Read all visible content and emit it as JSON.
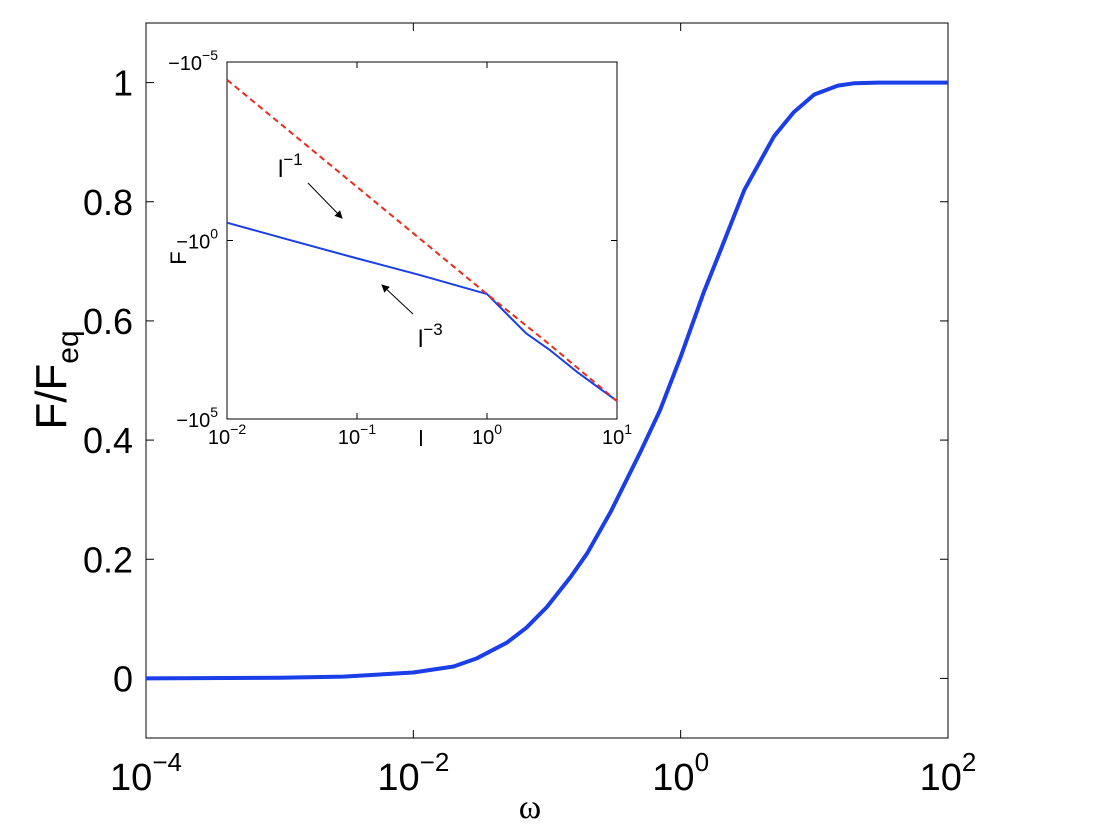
{
  "chart_data": [
    {
      "type": "line",
      "panel": "main",
      "xlabel": "ω",
      "ylabel": {
        "base": "F/F",
        "subscript": "eq"
      },
      "xscale": "log",
      "xlim": [
        0.0001,
        100
      ],
      "ylim": [
        -0.1,
        1.1
      ],
      "x_ticks": [
        {
          "base": "10",
          "exp": "−4",
          "value": 0.0001
        },
        {
          "base": "10",
          "exp": "−2",
          "value": 0.01
        },
        {
          "base": "10",
          "exp": "0",
          "value": 1
        },
        {
          "base": "10",
          "exp": "2",
          "value": 100
        }
      ],
      "y_ticks": [
        "0",
        "0.2",
        "0.4",
        "0.6",
        "0.8",
        "1"
      ],
      "grid": false,
      "series": [
        {
          "color": "#1a3ee8",
          "x": [
            0.0001,
            0.001,
            0.003,
            0.01,
            0.02,
            0.03,
            0.05,
            0.07,
            0.1,
            0.15,
            0.2,
            0.3,
            0.5,
            0.7,
            1,
            1.5,
            2,
            3,
            5,
            7,
            10,
            15,
            20,
            30,
            50,
            100
          ],
          "y": [
            0.0,
            0.001,
            0.003,
            0.01,
            0.02,
            0.034,
            0.06,
            0.085,
            0.12,
            0.17,
            0.21,
            0.28,
            0.38,
            0.45,
            0.54,
            0.65,
            0.72,
            0.82,
            0.91,
            0.95,
            0.98,
            0.995,
            0.999,
            1.0,
            1.0,
            1.0
          ]
        }
      ]
    },
    {
      "type": "line",
      "panel": "inset",
      "xlabel": "l",
      "ylabel": "F",
      "xscale": "log",
      "yscale": "log",
      "xlim": [
        0.01,
        10
      ],
      "ylim_exponent": [
        -5,
        5
      ],
      "x_ticks": [
        {
          "base": "10",
          "exp": "−2"
        },
        {
          "base": "10",
          "exp": "−1"
        },
        {
          "base": "10",
          "exp": "0"
        },
        {
          "base": "10",
          "exp": "1"
        }
      ],
      "y_ticks": [
        {
          "base": "−10",
          "exp": "−5"
        },
        {
          "base": "−10",
          "exp": "0"
        },
        {
          "base": "−10",
          "exp": "5"
        }
      ],
      "series": [
        {
          "color": "#1a3ee8",
          "style": "solid",
          "x": [
            0.01,
            0.03,
            0.1,
            0.3,
            1,
            2,
            3,
            5,
            10
          ],
          "y_exponent": [
            -0.5,
            -0.02,
            0.5,
            0.96,
            1.5,
            2.6,
            3.05,
            3.7,
            4.5
          ]
        },
        {
          "color": "#ee2a1a",
          "style": "dashed",
          "x": [
            0.01,
            0.1,
            1,
            3,
            10
          ],
          "y_exponent": [
            -4.5,
            -1.5,
            1.5,
            2.9,
            4.5
          ]
        }
      ],
      "annotations": [
        {
          "text": {
            "base": "l",
            "exp": "−1"
          }
        },
        {
          "text": {
            "base": "l",
            "exp": "−3"
          }
        }
      ]
    }
  ]
}
